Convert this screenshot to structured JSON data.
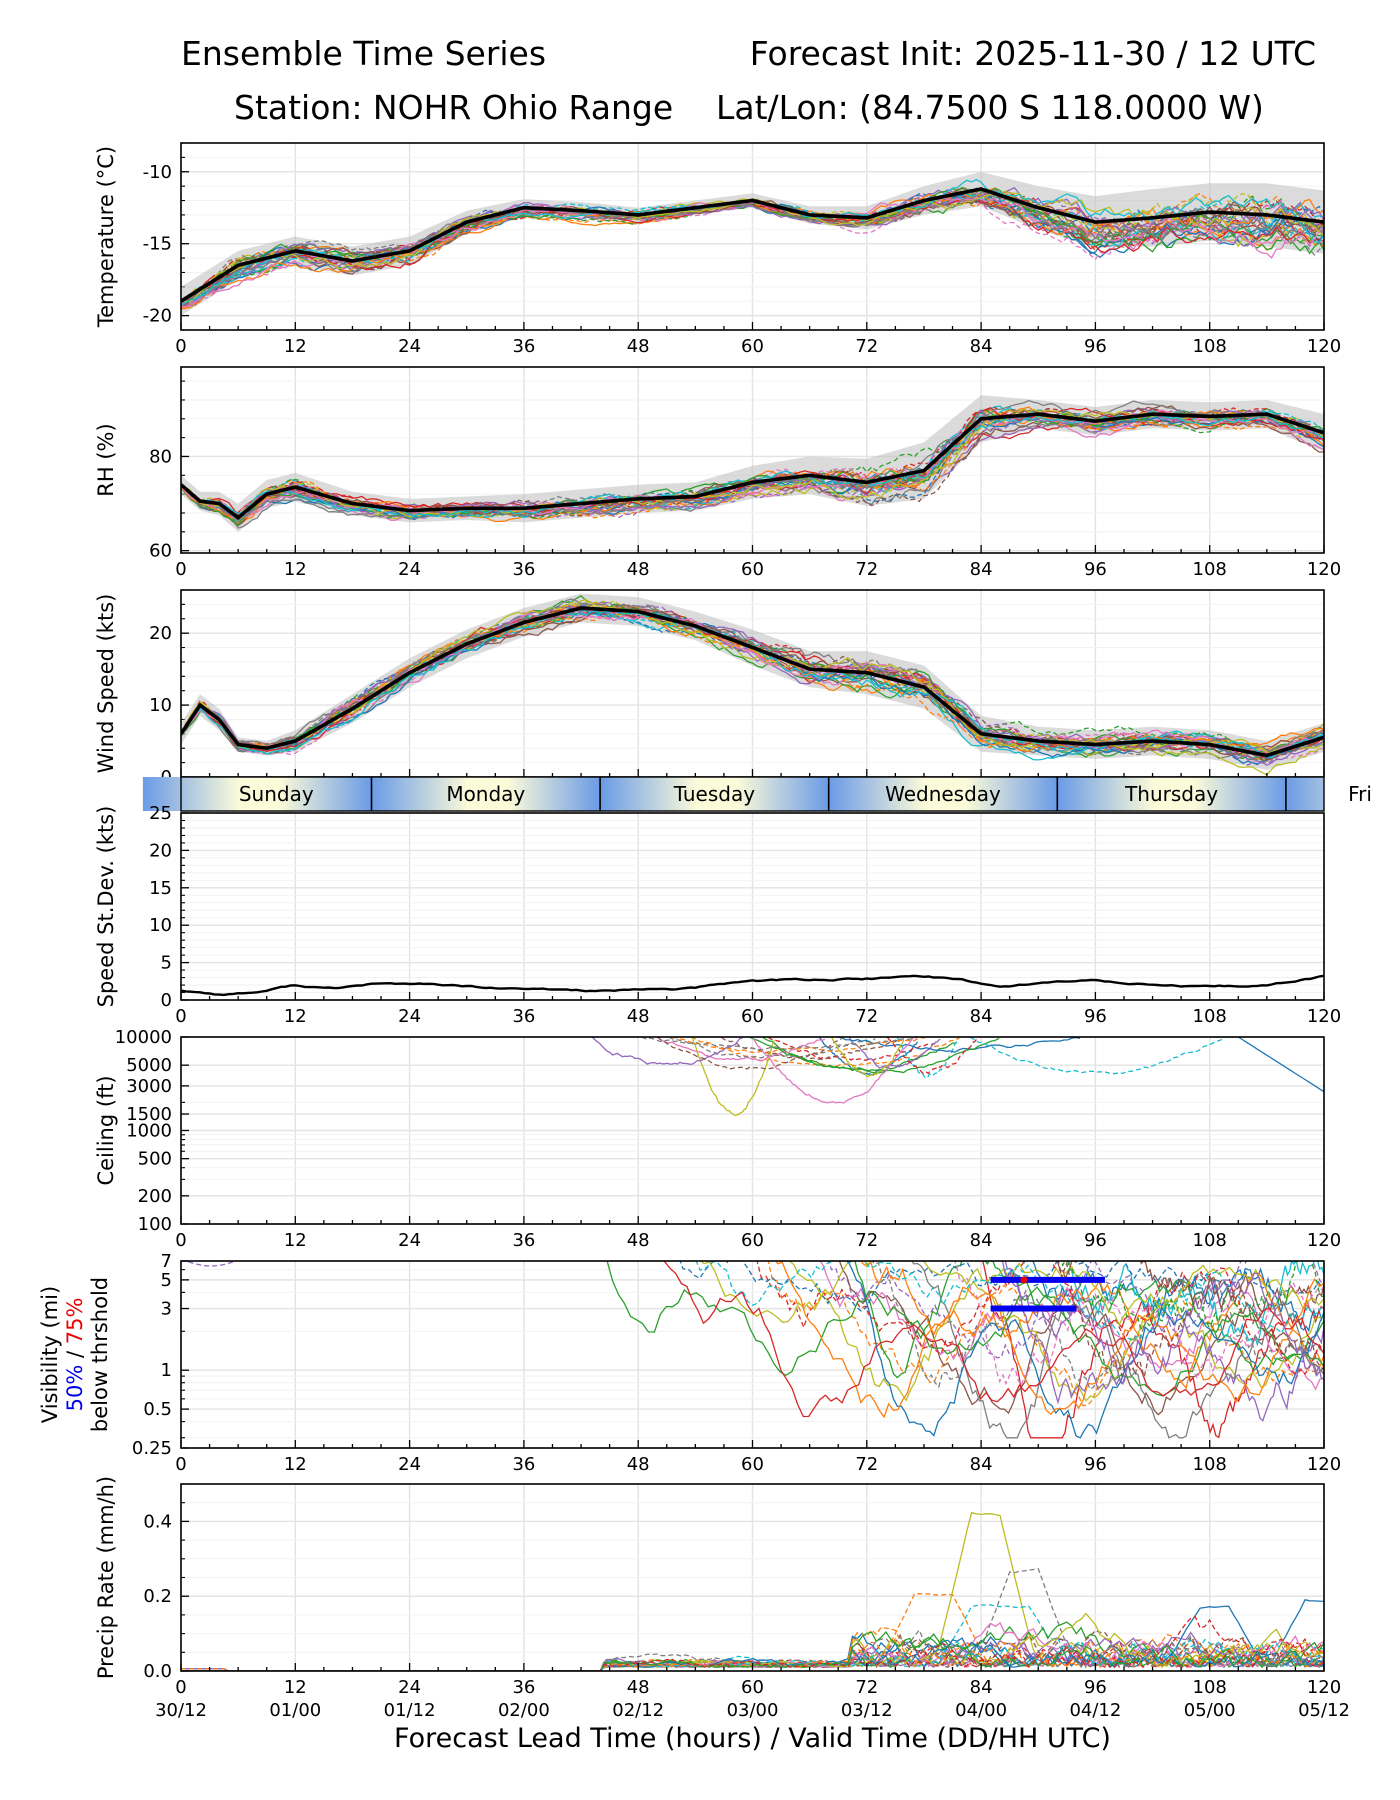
{
  "header": {
    "title": "Ensemble Time Series",
    "init": "Forecast Init: 2025-11-30 / 12 UTC",
    "station": "Station: NOHR Ohio Range",
    "latlon": "Lat/Lon: (84.7500 S 118.0000 W)"
  },
  "chart_data": [
    {
      "type": "line",
      "ylabel": "Temperature (°C)",
      "ylim": [
        -21,
        -8
      ],
      "yticks": [
        -10,
        -15,
        -20
      ],
      "x": [
        0,
        6,
        12,
        18,
        24,
        30,
        36,
        42,
        48,
        54,
        60,
        66,
        72,
        78,
        84,
        90,
        96,
        102,
        108,
        114,
        120
      ],
      "mean": [
        -19,
        -16.5,
        -15.5,
        -16.2,
        -15.5,
        -13.5,
        -12.5,
        -12.7,
        -13,
        -12.5,
        -12,
        -13,
        -13.2,
        -12,
        -11.2,
        -12.5,
        -13.5,
        -13.2,
        -12.8,
        -13,
        -13.5
      ],
      "spread": [
        1,
        1,
        1,
        1,
        1,
        0.8,
        0.6,
        0.6,
        0.5,
        0.5,
        0.5,
        0.6,
        0.8,
        1,
        1.2,
        1.5,
        1.8,
        2,
        2,
        2.2,
        2.2
      ]
    },
    {
      "type": "line",
      "ylabel": "RH (%)",
      "ylim": [
        59.5,
        99
      ],
      "yticks": [
        60,
        80
      ],
      "x": [
        0,
        2,
        4,
        6,
        9,
        12,
        18,
        24,
        30,
        36,
        42,
        48,
        54,
        60,
        66,
        72,
        78,
        84,
        90,
        96,
        102,
        108,
        114,
        120
      ],
      "mean": [
        74,
        70.5,
        70,
        67,
        72,
        73.5,
        70,
        68.5,
        69,
        69,
        70,
        71,
        71.5,
        74.5,
        76,
        74.5,
        77,
        88,
        89,
        87.5,
        89,
        88.5,
        89,
        85
      ],
      "spread": [
        2,
        2,
        2.5,
        3,
        3,
        3,
        2.5,
        2.5,
        2.5,
        3,
        3,
        3,
        3,
        3.5,
        4,
        5,
        6,
        5,
        3,
        3,
        3,
        3,
        3,
        4
      ]
    },
    {
      "type": "line",
      "ylabel": "Wind Speed (kts)",
      "ylim": [
        0,
        26
      ],
      "yticks": [
        0,
        10,
        20
      ],
      "x": [
        0,
        2,
        4,
        6,
        9,
        12,
        18,
        24,
        30,
        36,
        42,
        48,
        54,
        60,
        66,
        72,
        78,
        84,
        90,
        96,
        102,
        108,
        114,
        120
      ],
      "mean": [
        6,
        10,
        8,
        4.5,
        4,
        5,
        9.5,
        14.5,
        18.5,
        21.5,
        23.5,
        23,
        21,
        18,
        15,
        14.5,
        12.5,
        6,
        5,
        4.5,
        5,
        4.5,
        3,
        5.5
      ],
      "spread": [
        1.5,
        1.5,
        1.5,
        1,
        1,
        1.5,
        2,
        2,
        2,
        2,
        2,
        2,
        2,
        2.5,
        2.5,
        3,
        3,
        2.5,
        2,
        2,
        2,
        2,
        2,
        2
      ]
    },
    {
      "type": "line",
      "ylabel": "Speed St.Dev. (kts)",
      "ylim": [
        0,
        25
      ],
      "yticks": [
        0,
        5,
        10,
        15,
        20,
        25
      ],
      "x": [
        0,
        4,
        8,
        12,
        16,
        20,
        24,
        28,
        32,
        36,
        42,
        48,
        54,
        60,
        66,
        72,
        78,
        82,
        86,
        90,
        96,
        102,
        108,
        114,
        120
      ],
      "values": [
        1.3,
        0.8,
        1.1,
        2,
        1.5,
        2.1,
        2.1,
        1.9,
        1.5,
        1.3,
        1.2,
        1.2,
        1.5,
        2.5,
        2.6,
        2.8,
        3.1,
        2.7,
        1.8,
        2.3,
        2.6,
        2.2,
        1.6,
        1.8,
        3.1
      ]
    },
    {
      "type": "line",
      "ylabel": "Ceiling (ft)",
      "scale": "log",
      "ylim": [
        100,
        10000
      ],
      "ytick_labels": [
        "10000",
        "5000",
        "3000",
        "1500",
        "1000",
        "500",
        "200",
        "100"
      ],
      "yticks": [
        10000,
        5000,
        3000,
        1500,
        1000,
        500,
        200,
        100
      ]
    },
    {
      "type": "line",
      "ylabel": "Visibility (mi)",
      "ylabel_p50": "50%",
      "ylabel_sep": " / ",
      "ylabel_p75": "75%",
      "ylabel_tail": "below thrshold",
      "scale": "log",
      "ylim": [
        0.25,
        7
      ],
      "ytick_labels": [
        "7",
        "5",
        "3",
        "1",
        "0.5",
        "0.25"
      ],
      "yticks": [
        7,
        5,
        3,
        1,
        0.5,
        0.25
      ],
      "thresholds": [
        {
          "level": 5,
          "x_start": 85,
          "x_end": 97,
          "color": "#0000ee"
        },
        {
          "level": 3,
          "x_start": 85,
          "x_end": 94,
          "color": "#0000ee"
        }
      ]
    },
    {
      "type": "line",
      "ylabel": "Precip Rate (mm/h)",
      "ylim": [
        0,
        0.5
      ],
      "yticks": [
        0.0,
        0.2,
        0.4
      ],
      "ytick_labels": [
        "0.0",
        "0.2",
        "0.4"
      ]
    }
  ],
  "axes": {
    "xlim": [
      0,
      120
    ],
    "lead_ticks": [
      "0",
      "12",
      "24",
      "36",
      "48",
      "60",
      "72",
      "84",
      "96",
      "108",
      "120"
    ],
    "valid_ticks": [
      "30/12",
      "01/00",
      "01/12",
      "02/00",
      "02/12",
      "03/00",
      "03/12",
      "04/00",
      "04/12",
      "05/00",
      "05/12"
    ],
    "xlabel": "Forecast Lead Time (hours) / Valid Time (DD/HH UTC)"
  },
  "days": [
    "Sunday",
    "Monday",
    "Tuesday",
    "Wednesday",
    "Thursday",
    "Fri"
  ],
  "colors": {
    "ensemble": [
      "#1f77b4",
      "#ff7f0e",
      "#2ca02c",
      "#d62728",
      "#9467bd",
      "#8c564b",
      "#e377c2",
      "#7f7f7f",
      "#bcbd22",
      "#17becf"
    ],
    "mean": "#000000",
    "spread": "#bdbdbd",
    "day_light": "#fbfad9",
    "day_dark": "#6a9be6",
    "p50": "#0000ee",
    "p75": "#ee0000"
  }
}
